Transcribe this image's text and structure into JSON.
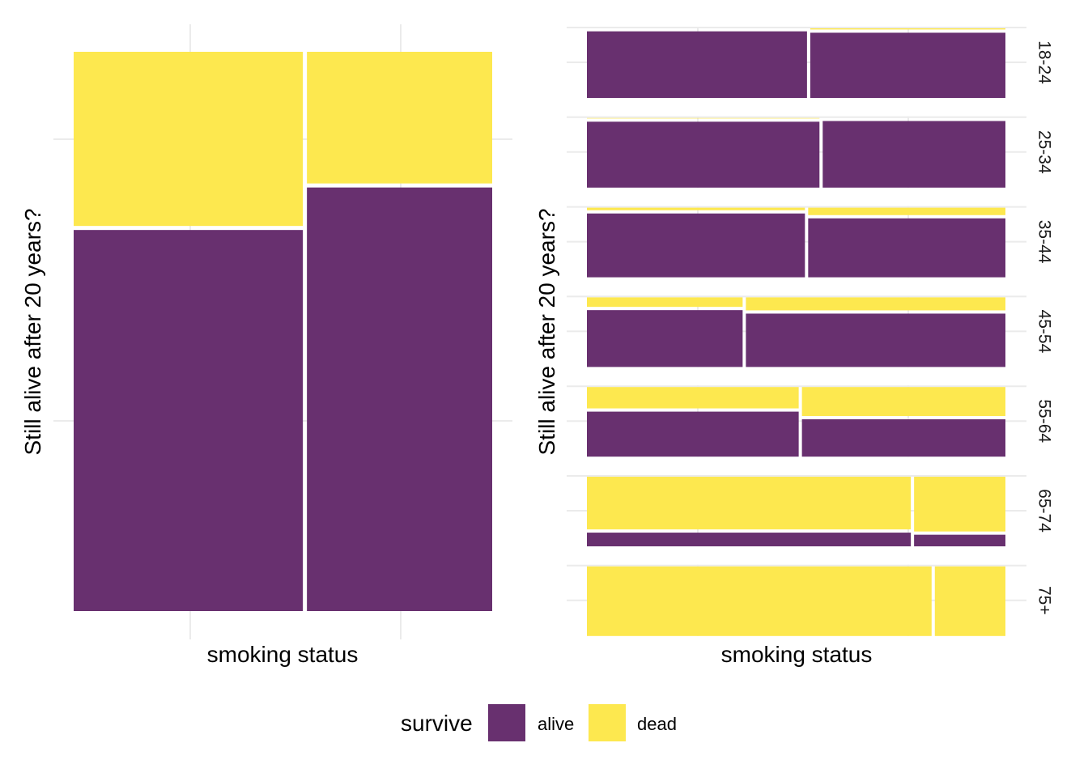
{
  "chart_data": [
    {
      "type": "mosaic",
      "panel": "overall",
      "xlabel": "smoking status",
      "ylabel": "Still alive after 20 years?",
      "fill_label": "survive",
      "columns": [
        {
          "width": 0.553,
          "alive": 0.685,
          "dead": 0.315
        },
        {
          "width": 0.447,
          "alive": 0.761,
          "dead": 0.239
        }
      ]
    },
    {
      "type": "mosaic",
      "panel": "by-age",
      "xlabel": "smoking status",
      "ylabel": "Still alive after 20 years?",
      "fill_label": "survive",
      "facets": [
        {
          "label": "18-24",
          "columns": [
            {
              "width": 0.53,
              "alive": 0.98,
              "dead": 0.02
            },
            {
              "width": 0.47,
              "alive": 0.96,
              "dead": 0.04
            }
          ]
        },
        {
          "label": "25-34",
          "columns": [
            {
              "width": 0.56,
              "alive": 0.97,
              "dead": 0.03
            },
            {
              "width": 0.44,
              "alive": 0.98,
              "dead": 0.02
            }
          ]
        },
        {
          "label": "35-44",
          "columns": [
            {
              "width": 0.525,
              "alive": 0.94,
              "dead": 0.06
            },
            {
              "width": 0.475,
              "alive": 0.87,
              "dead": 0.13
            }
          ]
        },
        {
          "label": "45-54",
          "columns": [
            {
              "width": 0.375,
              "alive": 0.84,
              "dead": 0.16
            },
            {
              "width": 0.625,
              "alive": 0.79,
              "dead": 0.21
            }
          ]
        },
        {
          "label": "55-64",
          "columns": [
            {
              "width": 0.51,
              "alive": 0.67,
              "dead": 0.33
            },
            {
              "width": 0.49,
              "alive": 0.56,
              "dead": 0.44
            }
          ]
        },
        {
          "label": "65-74",
          "columns": [
            {
              "width": 0.78,
              "alive": 0.22,
              "dead": 0.78
            },
            {
              "width": 0.22,
              "alive": 0.19,
              "dead": 0.81
            }
          ]
        },
        {
          "label": "75+",
          "columns": [
            {
              "width": 0.83,
              "alive": 0.0,
              "dead": 1.0
            },
            {
              "width": 0.17,
              "alive": 0.0,
              "dead": 1.0
            }
          ]
        }
      ]
    }
  ],
  "legend": {
    "title": "survive",
    "items": [
      {
        "label": "alive",
        "color": "#68306f"
      },
      {
        "label": "dead",
        "color": "#fde84f"
      }
    ]
  },
  "colors": {
    "alive": "#68306f",
    "dead": "#fde84f",
    "grid": "#ebebeb"
  }
}
